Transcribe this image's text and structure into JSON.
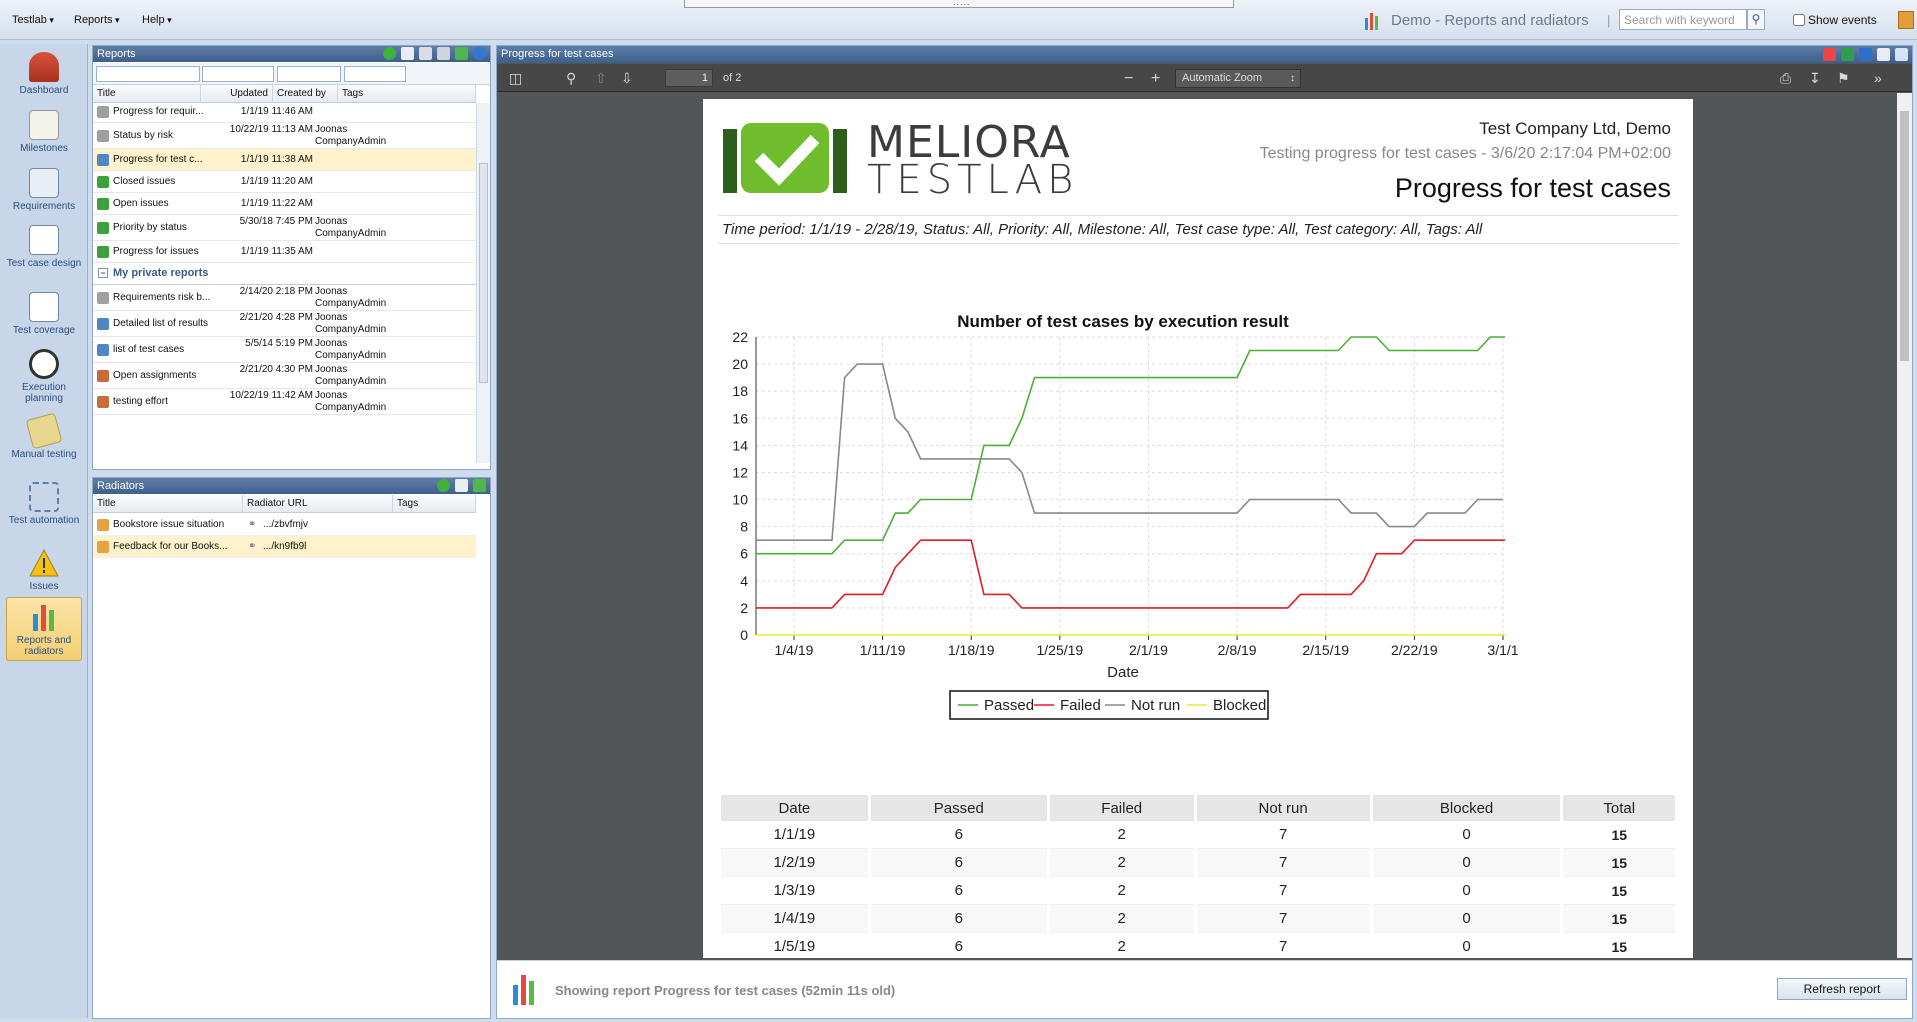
{
  "topbar": {
    "menus": [
      "Testlab",
      "Reports",
      "Help"
    ],
    "app_title": "Demo - Reports and radiators",
    "search_placeholder": "Search with keyword",
    "show_events": "Show events"
  },
  "nav": [
    {
      "label": "Dashboard",
      "icon": "house-icon"
    },
    {
      "label": "Milestones",
      "icon": "milestone-icon"
    },
    {
      "label": "Requirements",
      "icon": "requirements-icon"
    },
    {
      "label": "Test case design",
      "icon": "test-case-design-icon"
    },
    {
      "label": "Test coverage",
      "icon": "test-coverage-icon"
    },
    {
      "label": "Execution planning",
      "icon": "clock-icon"
    },
    {
      "label": "Manual testing",
      "icon": "manual-testing-icon"
    },
    {
      "label": "Test automation",
      "icon": "automation-icon"
    },
    {
      "label": "Issues",
      "icon": "warning-icon"
    },
    {
      "label": "Reports and radiators",
      "icon": "bar-chart-icon"
    }
  ],
  "reports": {
    "title": "Reports",
    "columns": [
      "Title",
      "Updated",
      "Created by",
      "Tags"
    ],
    "rows": [
      {
        "title": "Progress for requir...",
        "updated": "1/1/19 11:46 AM",
        "by": "",
        "icon": "gear"
      },
      {
        "title": "Status by risk",
        "updated": "10/22/19 11:13 AM",
        "by": "Joonas CompanyAdmin",
        "icon": "gear"
      },
      {
        "title": "Progress for test c...",
        "updated": "1/1/19 11:38 AM",
        "by": "",
        "icon": "doc",
        "selected": true
      },
      {
        "title": "Closed issues",
        "updated": "1/1/19 11:20 AM",
        "by": "",
        "icon": "bug"
      },
      {
        "title": "Open issues",
        "updated": "1/1/19 11:22 AM",
        "by": "",
        "icon": "bug"
      },
      {
        "title": "Priority by status",
        "updated": "5/30/18 7:45 PM",
        "by": "Joonas CompanyAdmin",
        "icon": "bug"
      },
      {
        "title": "Progress for issues",
        "updated": "1/1/19 11:35 AM",
        "by": "",
        "icon": "bug"
      }
    ],
    "group_label": "My private reports",
    "private_rows": [
      {
        "title": "Requirements risk b...",
        "updated": "2/14/20 2:18 PM",
        "by": "Joonas CompanyAdmin",
        "icon": "gear"
      },
      {
        "title": "Detailed list of results",
        "updated": "2/21/20 4:28 PM",
        "by": "Joonas CompanyAdmin",
        "icon": "doc"
      },
      {
        "title": "list of test cases",
        "updated": "5/5/14 5:19 PM",
        "by": "Joonas CompanyAdmin",
        "icon": "doc"
      },
      {
        "title": "Open assignments",
        "updated": "2/21/20 4:30 PM",
        "by": "Joonas CompanyAdmin",
        "icon": "list"
      },
      {
        "title": "testing effort",
        "updated": "10/22/19 11:42 AM",
        "by": "Joonas CompanyAdmin",
        "icon": "list"
      }
    ]
  },
  "radiators": {
    "title": "Radiators",
    "columns": [
      "Title",
      "Radiator URL",
      "Tags"
    ],
    "rows": [
      {
        "title": "Bookstore issue situation",
        "url": ".../zbvfmjv"
      },
      {
        "title": "Feedback for our Books...",
        "url": ".../kn9fb9l",
        "selected": true
      }
    ]
  },
  "viewer": {
    "title": "Progress for test cases",
    "page": "1",
    "page_of": "of 2",
    "zoom": "Automatic Zoom",
    "status_text": "Showing report Progress for test cases (52min 11s old)",
    "refresh_label": "Refresh report"
  },
  "report": {
    "logo_line1": "MELIORA",
    "logo_line2": "TESTLAB",
    "company": "Test Company Ltd, Demo",
    "subtitle": "Testing progress for test cases - 3/6/20 2:17:04 PM+02:00",
    "title": "Progress for test cases",
    "filters": "Time period: 1/1/19  -  2/28/19, Status: All, Priority: All, Milestone: All, Test case type: All, Test category: All, Tags: All",
    "table_headers": [
      "Date",
      "Passed",
      "Failed",
      "Not run",
      "Blocked",
      "Total"
    ],
    "table_rows": [
      [
        "1/1/19",
        "6",
        "2",
        "7",
        "0",
        "15"
      ],
      [
        "1/2/19",
        "6",
        "2",
        "7",
        "0",
        "15"
      ],
      [
        "1/3/19",
        "6",
        "2",
        "7",
        "0",
        "15"
      ],
      [
        "1/4/19",
        "6",
        "2",
        "7",
        "0",
        "15"
      ],
      [
        "1/5/19",
        "6",
        "2",
        "7",
        "0",
        "15"
      ]
    ]
  },
  "chart_data": {
    "type": "line",
    "title": "Number of test cases by execution result",
    "xlabel": "Date",
    "ylabel": "",
    "ylim": [
      0,
      22
    ],
    "yticks": [
      0,
      2,
      4,
      6,
      8,
      10,
      12,
      14,
      16,
      18,
      20,
      22
    ],
    "x_tick_labels": [
      "1/4/19",
      "1/11/19",
      "1/18/19",
      "1/25/19",
      "2/1/19",
      "2/8/19",
      "2/15/19",
      "2/22/19",
      "3/1/1"
    ],
    "x_tick_days": [
      3,
      10,
      17,
      24,
      31,
      38,
      45,
      52,
      59
    ],
    "x_range_days": [
      0,
      59
    ],
    "legend_position": "bottom",
    "series": [
      {
        "name": "Passed",
        "color": "#4caf32",
        "points": [
          [
            0,
            6
          ],
          [
            6,
            6
          ],
          [
            7,
            7
          ],
          [
            10,
            7
          ],
          [
            11,
            9
          ],
          [
            12,
            9
          ],
          [
            13,
            10
          ],
          [
            17,
            10
          ],
          [
            18,
            14
          ],
          [
            20,
            14
          ],
          [
            21,
            16
          ],
          [
            22,
            19
          ],
          [
            38,
            19
          ],
          [
            39,
            21
          ],
          [
            46,
            21
          ],
          [
            47,
            22
          ],
          [
            49,
            22
          ],
          [
            50,
            21
          ],
          [
            57,
            21
          ],
          [
            58,
            22
          ],
          [
            60,
            22
          ]
        ]
      },
      {
        "name": "Failed",
        "color": "#e31b23",
        "points": [
          [
            0,
            2
          ],
          [
            6,
            2
          ],
          [
            7,
            3
          ],
          [
            10,
            3
          ],
          [
            11,
            5
          ],
          [
            13,
            7
          ],
          [
            17,
            7
          ],
          [
            18,
            3
          ],
          [
            20,
            3
          ],
          [
            21,
            2
          ],
          [
            42,
            2
          ],
          [
            43,
            3
          ],
          [
            47,
            3
          ],
          [
            48,
            4
          ],
          [
            49,
            6
          ],
          [
            51,
            6
          ],
          [
            52,
            7
          ],
          [
            60,
            7
          ]
        ]
      },
      {
        "name": "Not run",
        "color": "#888888",
        "points": [
          [
            0,
            7
          ],
          [
            6,
            7
          ],
          [
            7,
            19
          ],
          [
            8,
            20
          ],
          [
            10,
            20
          ],
          [
            11,
            16
          ],
          [
            12,
            15
          ],
          [
            13,
            13
          ],
          [
            20,
            13
          ],
          [
            21,
            12
          ],
          [
            22,
            9
          ],
          [
            38,
            9
          ],
          [
            39,
            10
          ],
          [
            46,
            10
          ],
          [
            47,
            9
          ],
          [
            49,
            9
          ],
          [
            50,
            8
          ],
          [
            52,
            8
          ],
          [
            53,
            9
          ],
          [
            56,
            9
          ],
          [
            57,
            10
          ],
          [
            59,
            10
          ]
        ]
      },
      {
        "name": "Blocked",
        "color": "#e8e83a",
        "points": [
          [
            0,
            0
          ],
          [
            60,
            0
          ]
        ]
      }
    ]
  }
}
